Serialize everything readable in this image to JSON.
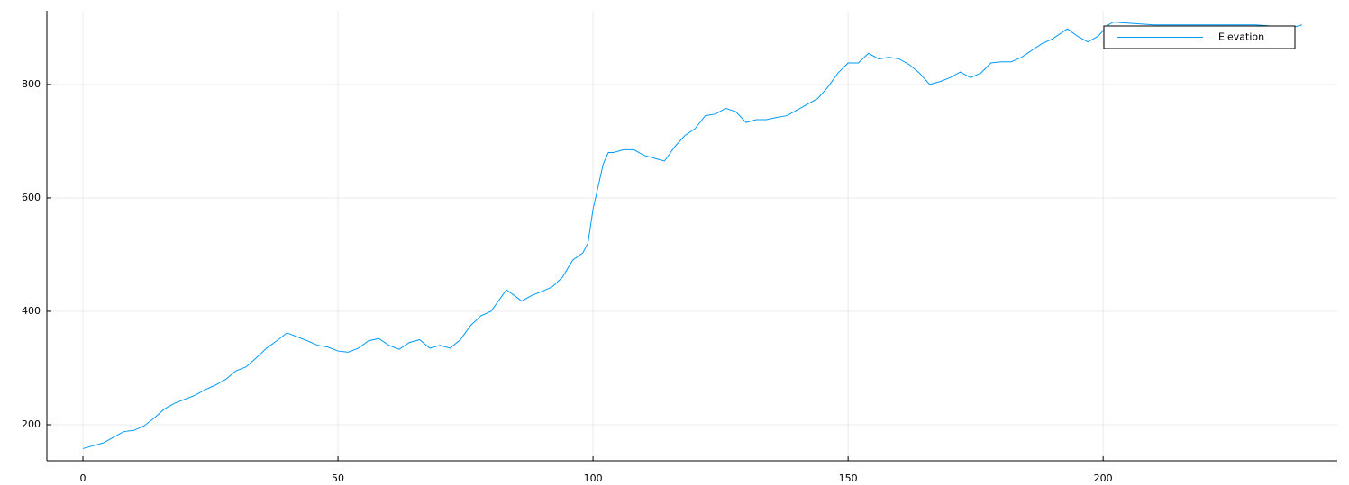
{
  "chart_data": {
    "type": "line",
    "x": [
      0,
      2,
      4,
      6,
      8,
      10,
      12,
      14,
      16,
      18,
      20,
      22,
      24,
      26,
      28,
      30,
      32,
      34,
      36,
      38,
      40,
      42,
      44,
      46,
      48,
      50,
      52,
      54,
      56,
      58,
      60,
      62,
      64,
      66,
      68,
      70,
      72,
      74,
      76,
      78,
      80,
      82,
      83,
      85,
      86,
      88,
      90,
      92,
      94,
      96,
      98,
      99,
      100,
      101,
      102,
      103,
      104,
      106,
      108,
      110,
      112,
      114,
      116,
      118,
      120,
      122,
      124,
      126,
      128,
      130,
      132,
      134,
      136,
      138,
      140,
      142,
      144,
      146,
      148,
      150,
      152,
      154,
      156,
      158,
      160,
      162,
      164,
      166,
      168,
      170,
      172,
      174,
      176,
      178,
      180,
      182,
      184,
      186,
      188,
      190,
      192,
      193,
      195,
      197,
      199,
      201,
      202,
      210,
      220,
      230,
      237,
      239
    ],
    "series": [
      {
        "name": "Elevation",
        "color": "#009af9",
        "values": [
          158,
          163,
          168,
          178,
          188,
          190,
          198,
          212,
          228,
          238,
          245,
          252,
          262,
          270,
          280,
          295,
          302,
          318,
          335,
          348,
          362,
          355,
          348,
          340,
          337,
          330,
          328,
          335,
          348,
          352,
          340,
          333,
          345,
          350,
          335,
          340,
          335,
          350,
          375,
          392,
          400,
          425,
          438,
          425,
          418,
          428,
          435,
          443,
          460,
          490,
          503,
          520,
          580,
          620,
          660,
          680,
          680,
          685,
          685,
          675,
          670,
          665,
          690,
          710,
          722,
          745,
          748,
          758,
          752,
          733,
          738,
          738,
          742,
          745,
          755,
          765,
          775,
          795,
          820,
          838,
          838,
          855,
          845,
          848,
          845,
          835,
          820,
          800,
          805,
          812,
          822,
          812,
          820,
          838,
          840,
          840,
          848,
          860,
          872,
          880,
          892,
          898,
          885,
          875,
          885,
          905,
          910,
          905,
          905,
          905,
          900,
          905
        ]
      }
    ],
    "xlim": [
      -7.07,
      245.9
    ],
    "ylim": [
      136.5,
      930
    ],
    "xticks": [
      0,
      50,
      100,
      150,
      200
    ],
    "yticks": [
      200,
      400,
      600,
      800
    ],
    "grid": true,
    "legend": "top-right"
  }
}
